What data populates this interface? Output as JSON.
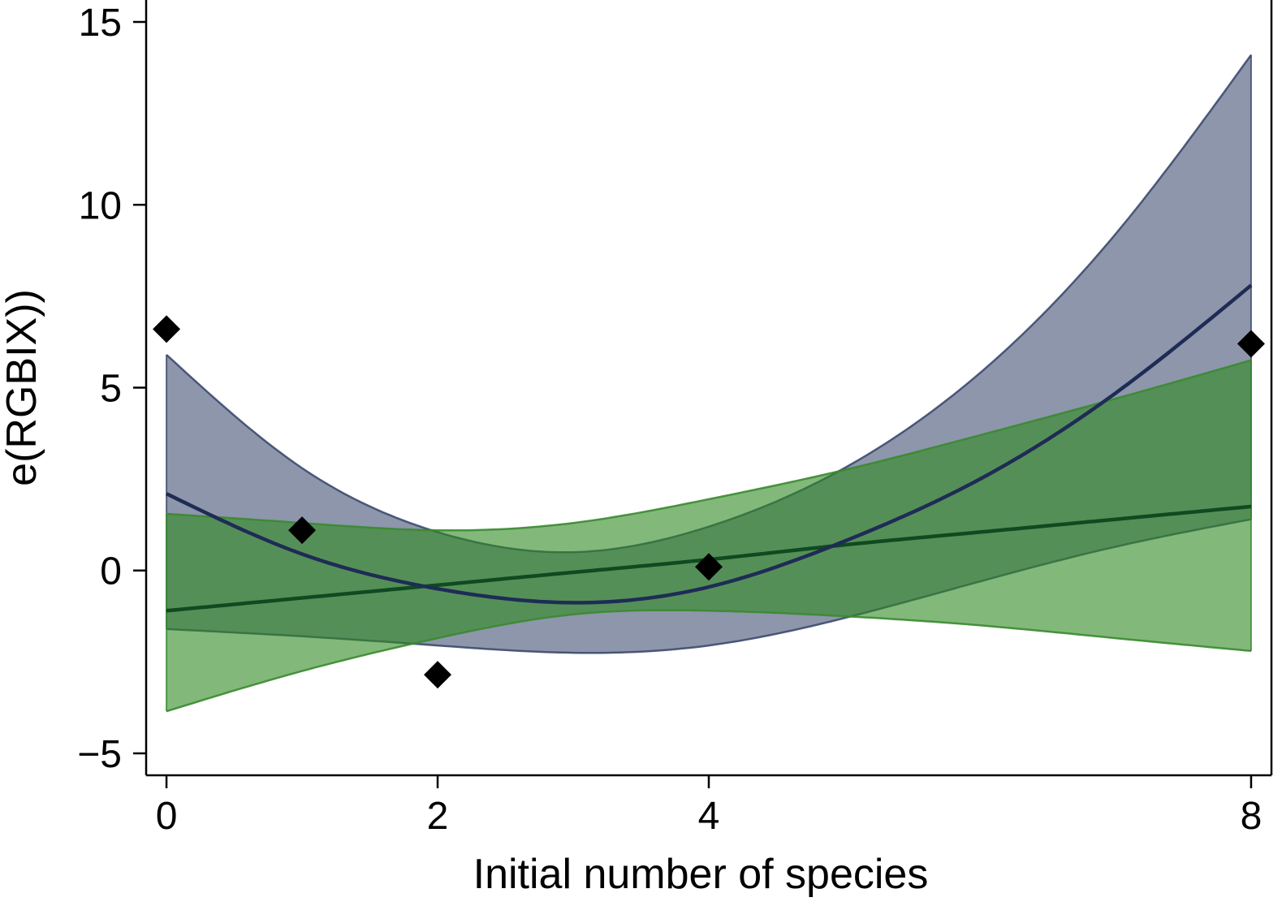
{
  "chart_data": {
    "type": "line",
    "title": "",
    "xlabel": "Initial number of species",
    "ylabel": "e(RGBIX))",
    "xlim": [
      -0.15,
      8.15
    ],
    "ylim": [
      -5.6,
      15.6
    ],
    "x_ticks": [
      0,
      2,
      4,
      8
    ],
    "y_ticks": [
      -5,
      0,
      5,
      10,
      15
    ],
    "y_tick_labels": [
      "−5",
      "0",
      "5",
      "10",
      "15"
    ],
    "grid": false,
    "legend": "none",
    "colors": {
      "quadratic_fill": "#3c4a6e",
      "quadratic_line": "#1e2c55",
      "linear_fill": "#2e8b22",
      "linear_line": "#0f4a20",
      "linear_band_edge": "#3a8a30",
      "points": "#000000"
    },
    "series": [
      {
        "kind": "quadratic-fit",
        "x": [
          0,
          1,
          2,
          3,
          4,
          5,
          6,
          7,
          8
        ],
        "fit": [
          2.1,
          0.45,
          -0.5,
          -0.88,
          -0.45,
          0.8,
          2.5,
          4.85,
          7.8
        ],
        "ci_lower": [
          -1.6,
          -1.8,
          -2.05,
          -2.25,
          -2.05,
          -1.3,
          -0.3,
          0.65,
          1.4
        ],
        "ci_upper": [
          5.9,
          2.8,
          1.05,
          0.5,
          1.2,
          2.8,
          5.4,
          9.2,
          14.1
        ]
      },
      {
        "kind": "linear-fit",
        "x": [
          0,
          1,
          2,
          3,
          4,
          5,
          6,
          7,
          8
        ],
        "fit": [
          -1.1,
          -0.75,
          -0.4,
          -0.05,
          0.3,
          0.7,
          1.05,
          1.4,
          1.75
        ],
        "ci_lower": [
          -3.85,
          -2.75,
          -1.85,
          -1.2,
          -1.1,
          -1.25,
          -1.5,
          -1.85,
          -2.2
        ],
        "ci_upper": [
          1.55,
          1.3,
          1.1,
          1.3,
          1.95,
          2.75,
          3.7,
          4.7,
          5.75
        ]
      },
      {
        "kind": "observed",
        "x": [
          0,
          1,
          2,
          4,
          8
        ],
        "y": [
          6.6,
          1.1,
          -2.85,
          0.1,
          6.2
        ]
      }
    ]
  }
}
